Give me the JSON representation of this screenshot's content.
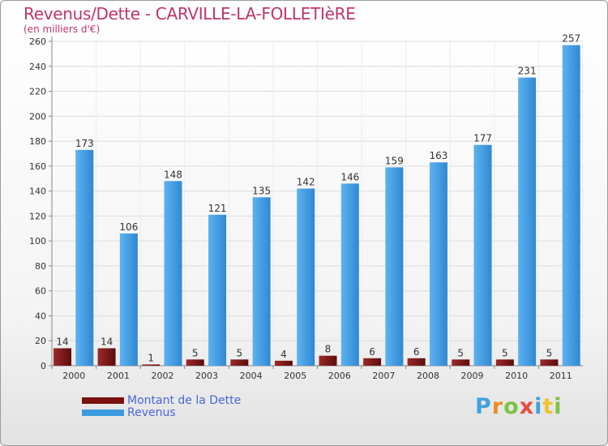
{
  "header": {
    "title": "Revenus/Dette - CARVILLE-LA-FOLLETIèRE",
    "subtitle": "(en milliers d'€)"
  },
  "chart_data": {
    "type": "bar",
    "categories": [
      "2000",
      "2001",
      "2002",
      "2003",
      "2004",
      "2005",
      "2006",
      "2007",
      "2008",
      "2009",
      "2010",
      "2011"
    ],
    "series": [
      {
        "name": "Montant de la Dette",
        "color": "#8b1a1a",
        "values": [
          14,
          14,
          1,
          5,
          5,
          4,
          8,
          6,
          6,
          5,
          5,
          5
        ]
      },
      {
        "name": "Revenus",
        "color": "#4aa3e8",
        "values": [
          173,
          106,
          148,
          121,
          135,
          142,
          146,
          159,
          163,
          177,
          231,
          257
        ]
      }
    ],
    "ylim": [
      0,
      260
    ],
    "yticks": [
      0,
      20,
      40,
      60,
      80,
      100,
      120,
      140,
      160,
      180,
      200,
      220,
      240,
      260
    ],
    "grid": true,
    "legend_position": "bottom-left"
  },
  "legend": {
    "items": [
      {
        "label": "Montant de la Dette",
        "color": "#7a1010"
      },
      {
        "label": "Revenus",
        "color": "#3c9be0"
      }
    ]
  },
  "logo": {
    "letters": [
      {
        "ch": "P",
        "color": "#3fa3e0"
      },
      {
        "ch": "r",
        "color": "#f08a24"
      },
      {
        "ch": "o",
        "color": "#7cc242"
      },
      {
        "ch": "x",
        "color": "#e84c3d"
      },
      {
        "ch": "i",
        "color": "#3fa3e0"
      },
      {
        "ch": "t",
        "color": "#f2c12e"
      },
      {
        "ch": "i",
        "color": "#7cc242"
      }
    ]
  }
}
